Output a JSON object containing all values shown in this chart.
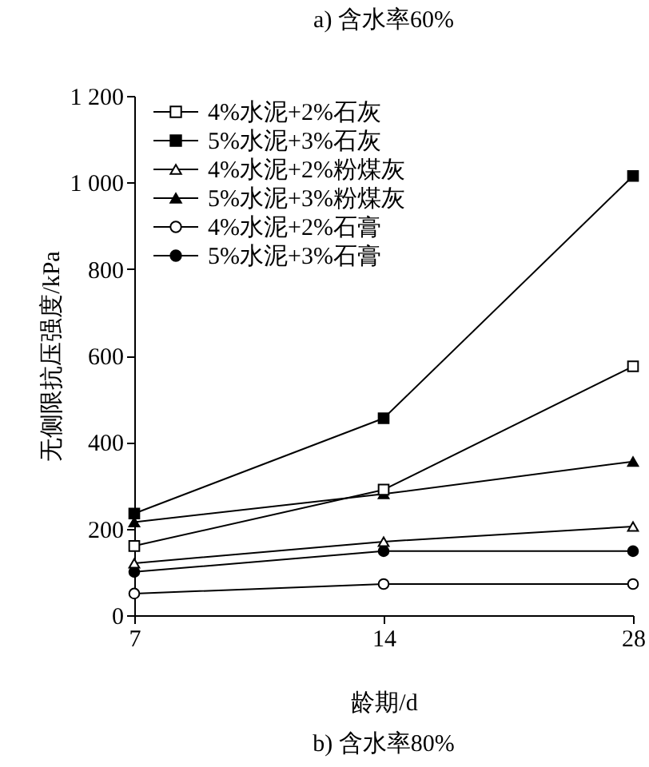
{
  "chart_data": {
    "type": "line",
    "xlabel": "龄期/d",
    "ylabel": "无侧限抗压强度/kPa",
    "categories": [
      "7",
      "14",
      "28"
    ],
    "series": [
      {
        "name": "4%水泥+2%石灰",
        "color": "#000000",
        "marker": "square",
        "values": [
          160,
          290,
          575
        ]
      },
      {
        "name": "5%水泥+3%石灰",
        "color": "#000000",
        "marker": "square",
        "values": [
          235,
          455,
          1015
        ]
      },
      {
        "name": "4%水泥+2%粉煤灰",
        "color": "#000000",
        "marker": "triangle",
        "values": [
          120,
          170,
          205
        ]
      },
      {
        "name": "5%水泥+3%粉煤灰",
        "color": "#000000",
        "marker": "triangle",
        "values": [
          215,
          280,
          355
        ]
      },
      {
        "name": "4%水泥+2%石膏",
        "color": "#000000",
        "marker": "circle",
        "values": [
          50,
          72,
          72
        ]
      },
      {
        "name": "5%水泥+3%石膏",
        "color": "#000000",
        "marker": "circle",
        "values": [
          100,
          148,
          148
        ]
      }
    ],
    "ylim": [
      0,
      1200
    ],
    "yticks": [
      0,
      200,
      400,
      600,
      800,
      {
        "value": 1000,
        "label": "1 000"
      },
      {
        "value": 1200,
        "label": "1 200"
      }
    ],
    "grid": false,
    "legend": "top left",
    "line_style": "solid",
    "annotations": [
      "a) 含水率60%",
      "b) 含水率80%"
    ]
  }
}
